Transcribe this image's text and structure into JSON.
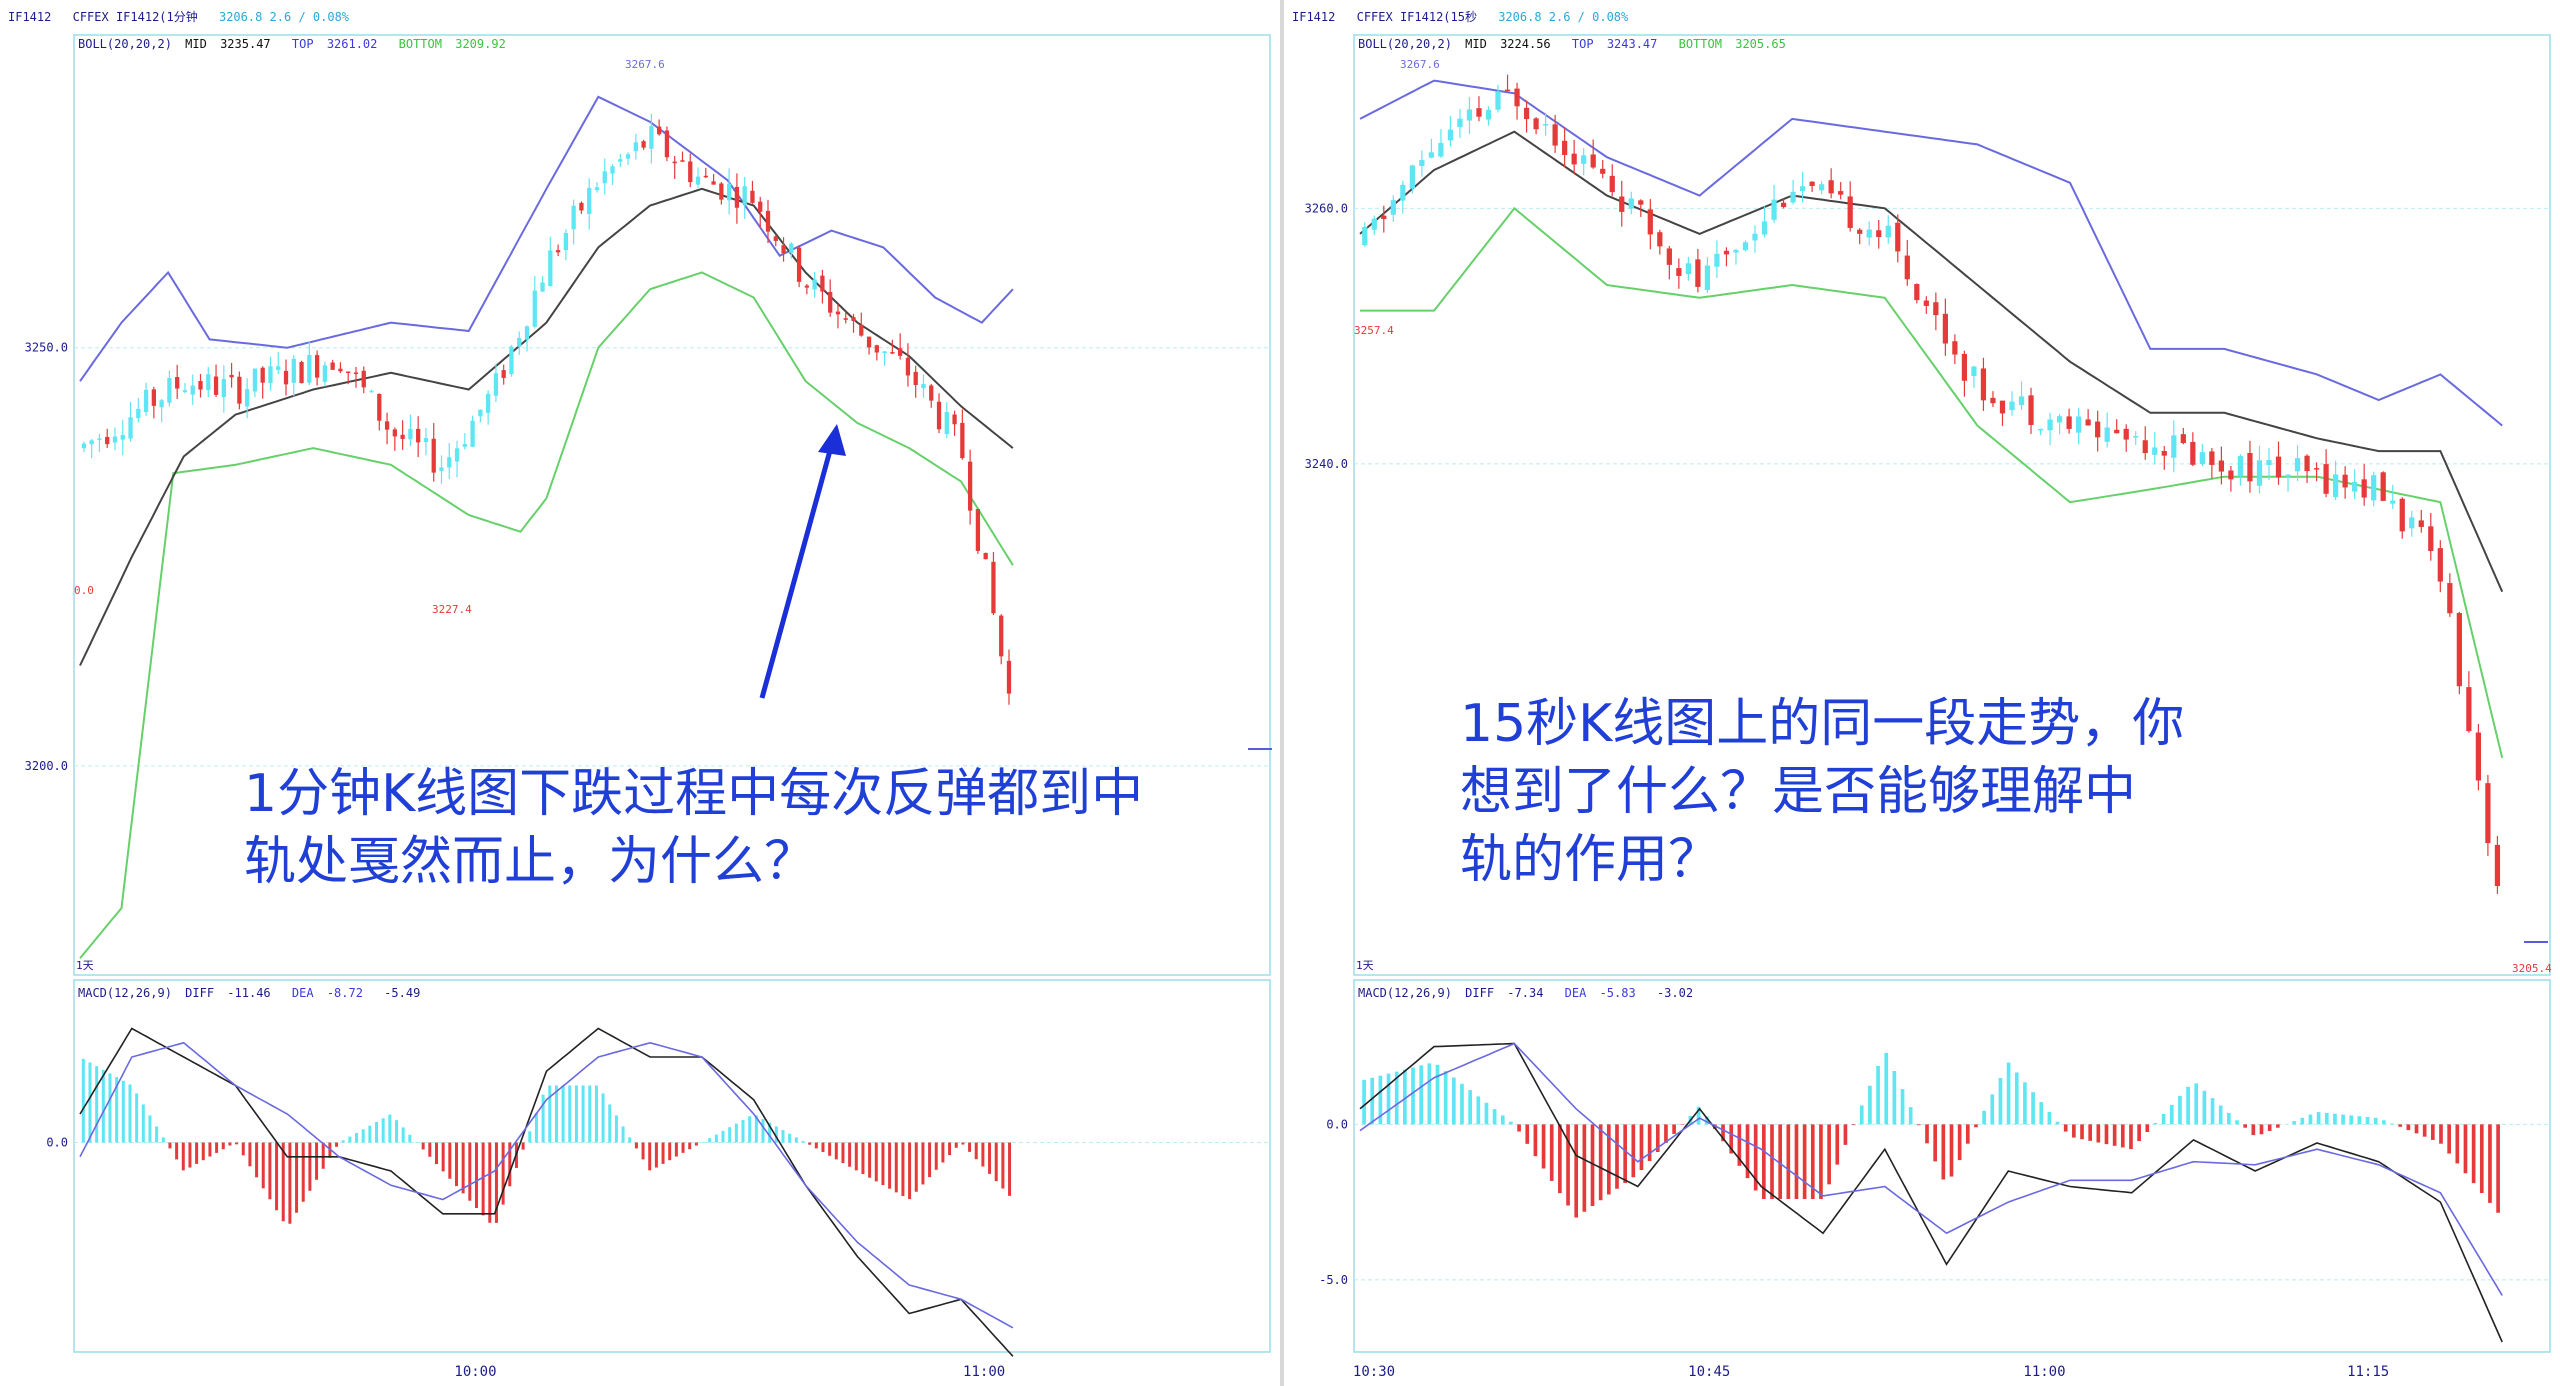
{
  "colors": {
    "up": "#5ee6f2",
    "down": "#e63a3a",
    "mid": "#444444",
    "top": "#6a6ae0",
    "bottom": "#66d06a",
    "grid": "#b8eef4",
    "question": "#1f3fd6",
    "arrow": "#1a2fd8",
    "axis": "#1aa7b8"
  },
  "left": {
    "header1": {
      "symbol": "IF1412",
      "exchange": "CFFEX IF1412(1分钟",
      "price": "3206.8  2.6 / 0.08%"
    },
    "header2": {
      "indicator": "BOLL(20,20,2)",
      "mid_label": "MID",
      "mid": "3235.47",
      "top_label": "TOP",
      "top": "3261.02",
      "bottom_label": "BOTTOM",
      "bottom": "3209.92"
    },
    "macd_header": {
      "label": "MACD(12,26,9)",
      "diff_label": "DIFF",
      "diff": "-11.46",
      "dea_label": "DEA",
      "dea": "-8.72",
      "macd": "-5.49"
    },
    "y_ticks": [
      "3250.0",
      "3200.0"
    ],
    "macd_ticks": [
      "0.0"
    ],
    "x_ticks": [
      "10:00",
      "11:00"
    ],
    "annotations": {
      "high": "3267.6",
      "low_a": "3227.4",
      "low_b": "0.0",
      "period": "1天"
    },
    "question": "1分钟K线图下跌过程中每次反弹都到中\n轨处戛然而止，为什么？"
  },
  "right": {
    "header1": {
      "symbol": "IF1412",
      "exchange": "CFFEX IF1412(15秒",
      "price": "3206.8  2.6 / 0.08%"
    },
    "header2": {
      "indicator": "BOLL(20,20,2)",
      "mid_label": "MID",
      "mid": "3224.56",
      "top_label": "TOP",
      "top": "3243.47",
      "bottom_label": "BOTTOM",
      "bottom": "3205.65"
    },
    "macd_header": {
      "label": "MACD(12,26,9)",
      "diff_label": "DIFF",
      "diff": "-7.34",
      "dea_label": "DEA",
      "dea": "-5.83",
      "macd": "-3.02"
    },
    "y_ticks": [
      "3260.0",
      "3240.0"
    ],
    "macd_ticks": [
      "0.0",
      "-5.0"
    ],
    "x_ticks": [
      "10:30",
      "10:45",
      "11:00",
      "11:15"
    ],
    "annotations": {
      "high": "3267.6",
      "low_a": "3257.4",
      "low_b": "3205.4",
      "period": "1天"
    },
    "question": "15秒K线图上的同一段走势，你\n想到了什么？是否能够理解中\n轨的作用？"
  },
  "chart_data": [
    {
      "type": "candlestick",
      "title": "IF1412 1分钟",
      "indicators": [
        "BOLL(20,20,2)",
        "MACD(12,26,9)"
      ],
      "x_ticks": [
        "10:00",
        "11:00"
      ],
      "ylim": [
        3175,
        3285
      ],
      "bollinger": {
        "top": [
          [
            0,
            3246
          ],
          [
            8,
            3253
          ],
          [
            17,
            3259
          ],
          [
            25,
            3251
          ],
          [
            40,
            3250
          ],
          [
            60,
            3253
          ],
          [
            75,
            3252
          ],
          [
            90,
            3269
          ],
          [
            100,
            3280
          ],
          [
            110,
            3277
          ],
          [
            125,
            3270
          ],
          [
            135,
            3261
          ],
          [
            145,
            3264
          ],
          [
            155,
            3262
          ],
          [
            165,
            3256
          ],
          [
            174,
            3253
          ],
          [
            180,
            3257
          ]
        ],
        "mid": [
          [
            0,
            3212
          ],
          [
            10,
            3225
          ],
          [
            20,
            3237
          ],
          [
            30,
            3242
          ],
          [
            45,
            3245
          ],
          [
            60,
            3247
          ],
          [
            75,
            3245
          ],
          [
            90,
            3253
          ],
          [
            100,
            3262
          ],
          [
            110,
            3267
          ],
          [
            120,
            3269
          ],
          [
            130,
            3267
          ],
          [
            140,
            3259
          ],
          [
            150,
            3253
          ],
          [
            160,
            3249
          ],
          [
            170,
            3243
          ],
          [
            180,
            3238
          ]
        ],
        "bottom": [
          [
            0,
            3177
          ],
          [
            8,
            3183
          ],
          [
            18,
            3235
          ],
          [
            30,
            3236
          ],
          [
            45,
            3238
          ],
          [
            60,
            3236
          ],
          [
            75,
            3230
          ],
          [
            85,
            3228
          ],
          [
            90,
            3232
          ],
          [
            100,
            3250
          ],
          [
            110,
            3257
          ],
          [
            120,
            3259
          ],
          [
            130,
            3256
          ],
          [
            140,
            3246
          ],
          [
            150,
            3241
          ],
          [
            160,
            3238
          ],
          [
            170,
            3234
          ],
          [
            180,
            3224
          ]
        ]
      },
      "price_path": [
        [
          0,
          3238
        ],
        [
          10,
          3242
        ],
        [
          20,
          3246
        ],
        [
          30,
          3245
        ],
        [
          40,
          3247
        ],
        [
          50,
          3249
        ],
        [
          60,
          3240
        ],
        [
          70,
          3236
        ],
        [
          80,
          3245
        ],
        [
          90,
          3260
        ],
        [
          100,
          3270
        ],
        [
          110,
          3275
        ],
        [
          120,
          3270
        ],
        [
          130,
          3268
        ],
        [
          140,
          3258
        ],
        [
          150,
          3252
        ],
        [
          160,
          3247
        ],
        [
          170,
          3238
        ],
        [
          175,
          3222
        ],
        [
          180,
          3206
        ]
      ],
      "macd": {
        "ylim": [
          -14,
          10
        ],
        "diff": [
          [
            0,
            2
          ],
          [
            10,
            8
          ],
          [
            20,
            6
          ],
          [
            30,
            4
          ],
          [
            40,
            -1
          ],
          [
            50,
            -1
          ],
          [
            60,
            -2
          ],
          [
            70,
            -5
          ],
          [
            80,
            -5
          ],
          [
            90,
            5
          ],
          [
            100,
            8
          ],
          [
            110,
            6
          ],
          [
            120,
            6
          ],
          [
            130,
            3
          ],
          [
            140,
            -3
          ],
          [
            150,
            -8
          ],
          [
            160,
            -12
          ],
          [
            170,
            -11
          ],
          [
            180,
            -15
          ]
        ],
        "dea": [
          [
            0,
            -1
          ],
          [
            10,
            6
          ],
          [
            20,
            7
          ],
          [
            30,
            4
          ],
          [
            40,
            2
          ],
          [
            50,
            -1
          ],
          [
            60,
            -3
          ],
          [
            70,
            -4
          ],
          [
            80,
            -2
          ],
          [
            90,
            3
          ],
          [
            100,
            6
          ],
          [
            110,
            7
          ],
          [
            120,
            6
          ],
          [
            130,
            2
          ],
          [
            140,
            -3
          ],
          [
            150,
            -7
          ],
          [
            160,
            -10
          ],
          [
            170,
            -11
          ],
          [
            180,
            -13
          ]
        ]
      }
    },
    {
      "type": "candlestick",
      "title": "IF1412 15秒",
      "indicators": [
        "BOLL(20,20,2)",
        "MACD(12,26,9)"
      ],
      "x_ticks": [
        "10:30",
        "10:45",
        "11:00",
        "11:15"
      ],
      "ylim": [
        3200,
        3272
      ],
      "bollinger": {
        "top": [
          [
            0,
            3267
          ],
          [
            12,
            3270
          ],
          [
            25,
            3269
          ],
          [
            40,
            3264
          ],
          [
            55,
            3261
          ],
          [
            70,
            3267
          ],
          [
            85,
            3266
          ],
          [
            100,
            3265
          ],
          [
            115,
            3262
          ],
          [
            128,
            3249
          ],
          [
            140,
            3249
          ],
          [
            155,
            3247
          ],
          [
            165,
            3245
          ],
          [
            175,
            3247
          ],
          [
            185,
            3243
          ]
        ],
        "mid": [
          [
            0,
            3258
          ],
          [
            12,
            3263
          ],
          [
            25,
            3266
          ],
          [
            40,
            3261
          ],
          [
            55,
            3258
          ],
          [
            70,
            3261
          ],
          [
            85,
            3260
          ],
          [
            100,
            3254
          ],
          [
            115,
            3248
          ],
          [
            128,
            3244
          ],
          [
            140,
            3244
          ],
          [
            155,
            3242
          ],
          [
            165,
            3241
          ],
          [
            175,
            3241
          ],
          [
            185,
            3230
          ]
        ],
        "bottom": [
          [
            0,
            3252
          ],
          [
            12,
            3252
          ],
          [
            25,
            3260
          ],
          [
            40,
            3254
          ],
          [
            55,
            3253
          ],
          [
            70,
            3254
          ],
          [
            85,
            3253
          ],
          [
            100,
            3243
          ],
          [
            115,
            3237
          ],
          [
            128,
            3238
          ],
          [
            140,
            3239
          ],
          [
            155,
            3239
          ],
          [
            165,
            3238
          ],
          [
            175,
            3237
          ],
          [
            185,
            3217
          ]
        ]
      },
      "price_path": [
        [
          0,
          3257
        ],
        [
          12,
          3265
        ],
        [
          25,
          3269
        ],
        [
          40,
          3262
        ],
        [
          55,
          3254
        ],
        [
          70,
          3262
        ],
        [
          85,
          3258
        ],
        [
          100,
          3246
        ],
        [
          115,
          3243
        ],
        [
          128,
          3242
        ],
        [
          140,
          3240
        ],
        [
          155,
          3239
        ],
        [
          165,
          3238
        ],
        [
          175,
          3232
        ],
        [
          185,
          3205
        ]
      ],
      "macd": {
        "ylim": [
          -7,
          4
        ],
        "diff": [
          [
            0,
            0.5
          ],
          [
            12,
            2.5
          ],
          [
            25,
            2.6
          ],
          [
            35,
            -1
          ],
          [
            45,
            -2
          ],
          [
            55,
            0.5
          ],
          [
            65,
            -2
          ],
          [
            75,
            -3.5
          ],
          [
            85,
            -0.8
          ],
          [
            95,
            -4.5
          ],
          [
            105,
            -1.5
          ],
          [
            115,
            -2
          ],
          [
            125,
            -2.2
          ],
          [
            135,
            -0.5
          ],
          [
            145,
            -1.5
          ],
          [
            155,
            -0.6
          ],
          [
            165,
            -1.2
          ],
          [
            175,
            -2.5
          ],
          [
            185,
            -7
          ]
        ],
        "dea": [
          [
            0,
            -0.2
          ],
          [
            12,
            1.5
          ],
          [
            25,
            2.6
          ],
          [
            35,
            0.5
          ],
          [
            45,
            -1.2
          ],
          [
            55,
            0.2
          ],
          [
            65,
            -0.8
          ],
          [
            75,
            -2.3
          ],
          [
            85,
            -2.0
          ],
          [
            95,
            -3.5
          ],
          [
            105,
            -2.5
          ],
          [
            115,
            -1.8
          ],
          [
            125,
            -1.8
          ],
          [
            135,
            -1.2
          ],
          [
            145,
            -1.3
          ],
          [
            155,
            -0.8
          ],
          [
            165,
            -1.3
          ],
          [
            175,
            -2.2
          ],
          [
            185,
            -5.5
          ]
        ]
      }
    }
  ]
}
